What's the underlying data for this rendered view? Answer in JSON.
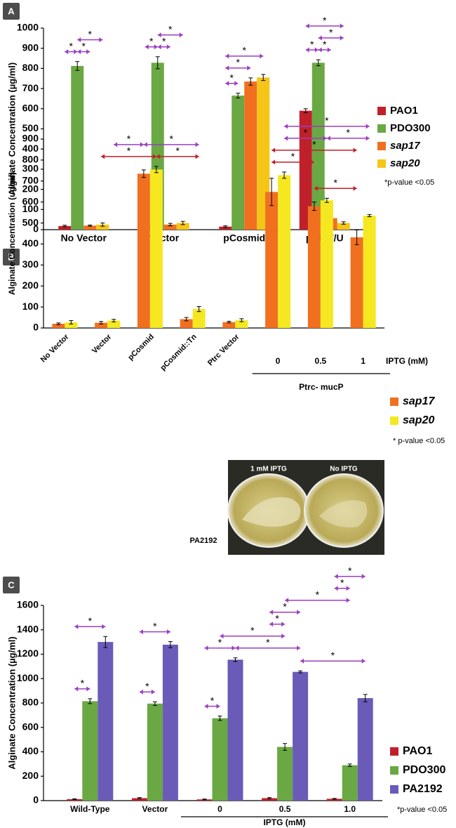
{
  "chart_data": [
    {
      "type": "bar",
      "panel": "A",
      "y_label": "Alginate Concentration (µg/ml)",
      "categories": [
        "No Vector",
        "Vector",
        "pCosmid",
        "pAlgT/U"
      ],
      "series": [
        {
          "name": "PAO1",
          "color": "#c0202a",
          "values": [
            18,
            25,
            15,
            590
          ],
          "errors": [
            4,
            6,
            4,
            10
          ]
        },
        {
          "name": "PDO300",
          "color": "#6aa844",
          "values": [
            812,
            828,
            665,
            828
          ],
          "errors": [
            22,
            30,
            12,
            15
          ]
        },
        {
          "name": "sap17",
          "color": "#f07020",
          "values": [
            20,
            25,
            735,
            57
          ],
          "errors": [
            3,
            6,
            18,
            15
          ]
        },
        {
          "name": "sap20",
          "color": "#f5c518",
          "values": [
            25,
            33,
            755,
            33
          ],
          "errors": [
            8,
            8,
            15,
            6
          ]
        }
      ],
      "legend_italic": [
        false,
        false,
        true,
        true
      ],
      "ylim": [
        0,
        1000
      ],
      "yticks": [
        0,
        100,
        200,
        300,
        400,
        500,
        600,
        700,
        800,
        900,
        1000
      ],
      "note": "*p-value <0.05",
      "significance": [
        {
          "label": "*",
          "from": [
            0,
            0
          ],
          "to": [
            0,
            1
          ],
          "color": "#9b3fc0"
        },
        {
          "label": "*",
          "from": [
            0,
            1
          ],
          "to": [
            0,
            2
          ],
          "color": "#9b3fc0"
        },
        {
          "label": "*",
          "from": [
            0,
            1
          ],
          "to": [
            0,
            3
          ],
          "color": "#9b3fc0"
        },
        {
          "label": "*",
          "from": [
            1,
            0
          ],
          "to": [
            1,
            1
          ],
          "color": "#9b3fc0"
        },
        {
          "label": "*",
          "from": [
            1,
            1
          ],
          "to": [
            1,
            2
          ],
          "color": "#9b3fc0"
        },
        {
          "label": "*",
          "from": [
            1,
            1
          ],
          "to": [
            1,
            3
          ],
          "color": "#9b3fc0"
        },
        {
          "label": "*",
          "from": [
            2,
            0
          ],
          "to": [
            2,
            1
          ],
          "color": "#9b3fc0"
        },
        {
          "label": "*",
          "from": [
            2,
            0
          ],
          "to": [
            2,
            2
          ],
          "color": "#9b3fc0"
        },
        {
          "label": "*",
          "from": [
            2,
            0
          ],
          "to": [
            2,
            3
          ],
          "color": "#9b3fc0"
        },
        {
          "label": "*",
          "from": [
            3,
            1
          ],
          "to": [
            3,
            2
          ],
          "color": "#9b3fc0"
        },
        {
          "label": "*",
          "from": [
            3,
            1
          ],
          "to": [
            3,
            3
          ],
          "color": "#9b3fc0"
        },
        {
          "label": "*",
          "from": [
            3,
            0
          ],
          "to": [
            3,
            1
          ],
          "color": "#9b3fc0"
        },
        {
          "label": "*",
          "from": [
            3,
            0
          ],
          "to": [
            3,
            3
          ],
          "color": "#9b3fc0"
        }
      ]
    },
    {
      "type": "bar",
      "panel": "B",
      "y_label": "Alginate Concentration (ug/ml)",
      "categories": [
        "No Vector",
        "Vector",
        "pCosmid",
        "pCosmid::Tn",
        "Ptrc Vector",
        "0",
        "0.5",
        "1"
      ],
      "series": [
        {
          "name": "sap17",
          "color": "#f07020",
          "values": [
            20,
            25,
            735,
            42,
            28,
            648,
            580,
            432
          ],
          "errors": [
            4,
            6,
            18,
            8,
            4,
            65,
            20,
            35
          ]
        },
        {
          "name": "sap20",
          "color": "#f5e820",
          "values": [
            27,
            35,
            755,
            90,
            37,
            728,
            608,
            535
          ],
          "errors": [
            8,
            6,
            15,
            12,
            7,
            15,
            10,
            5
          ]
        }
      ],
      "legend_italic": [
        true,
        true
      ],
      "ylim": [
        0,
        900
      ],
      "yticks": [
        0,
        100,
        200,
        300,
        400,
        500,
        600,
        700,
        800,
        900
      ],
      "note": "* p-value <0.05",
      "group_label": "Ptrc- mucP",
      "group_span": [
        5,
        7
      ],
      "x_note": "IPTG (mM)",
      "significance": [
        {
          "label": "*",
          "from": [
            1,
            0
          ],
          "to": [
            2,
            1
          ],
          "color": "#c0202a"
        },
        {
          "label": "*",
          "from": [
            2,
            1
          ],
          "to": [
            3,
            1
          ],
          "color": "#c0202a"
        },
        {
          "label": "*",
          "from": [
            1,
            1
          ],
          "to": [
            2,
            0
          ],
          "color": "#9b3fc0"
        },
        {
          "label": "*",
          "from": [
            2,
            0
          ],
          "to": [
            3,
            1
          ],
          "color": "#9b3fc0"
        },
        {
          "label": "*",
          "from": [
            5,
            0
          ],
          "to": [
            6,
            0
          ],
          "color": "#c0202a"
        },
        {
          "label": "*",
          "from": [
            6,
            0
          ],
          "to": [
            7,
            0
          ],
          "color": "#c0202a"
        },
        {
          "label": "*",
          "from": [
            5,
            0
          ],
          "to": [
            7,
            0
          ],
          "color": "#c0202a"
        },
        {
          "label": "*",
          "from": [
            5,
            1
          ],
          "to": [
            6,
            1
          ],
          "color": "#9b3fc0"
        },
        {
          "label": "*",
          "from": [
            6,
            1
          ],
          "to": [
            7,
            1
          ],
          "color": "#9b3fc0"
        },
        {
          "label": "*",
          "from": [
            5,
            1
          ],
          "to": [
            7,
            1
          ],
          "color": "#9b3fc0"
        }
      ]
    },
    {
      "type": "bar",
      "panel": "C",
      "y_label": "Alginate Concentration (µg/ml)",
      "categories": [
        "Wild-Type",
        "Vector",
        "0",
        "0.5",
        "1.0"
      ],
      "series": [
        {
          "name": "PAO1",
          "color": "#c0202a",
          "values": [
            12,
            20,
            10,
            20,
            15
          ],
          "errors": [
            3,
            5,
            3,
            5,
            3
          ]
        },
        {
          "name": "PDO300",
          "color": "#6aa844",
          "values": [
            815,
            795,
            675,
            440,
            290
          ],
          "errors": [
            20,
            15,
            18,
            28,
            10
          ]
        },
        {
          "name": "PA2192",
          "color": "#6a5bb8",
          "values": [
            1300,
            1278,
            1155,
            1055,
            840
          ],
          "errors": [
            45,
            25,
            15,
            8,
            30
          ]
        }
      ],
      "legend_italic": [
        false,
        false,
        false
      ],
      "ylim": [
        0,
        1600
      ],
      "yticks": [
        0,
        200,
        400,
        600,
        800,
        1000,
        1200,
        1400,
        1600
      ],
      "note": "*p-value <0.05",
      "group_label": "IPTG (mM)",
      "group_span": [
        2,
        4
      ],
      "inset_labels": [
        "1 mM IPTG",
        "No IPTG"
      ],
      "inset_caption": "PA2192",
      "significance": [
        {
          "label": "*",
          "from": [
            0,
            0
          ],
          "to": [
            0,
            1
          ],
          "color": "#9b3fc0"
        },
        {
          "label": "*",
          "from": [
            0,
            0
          ],
          "to": [
            0,
            2
          ],
          "color": "#9b3fc0"
        },
        {
          "label": "*",
          "from": [
            1,
            0
          ],
          "to": [
            1,
            1
          ],
          "color": "#9b3fc0"
        },
        {
          "label": "*",
          "from": [
            1,
            0
          ],
          "to": [
            1,
            2
          ],
          "color": "#9b3fc0"
        },
        {
          "label": "*",
          "from": [
            2,
            0
          ],
          "to": [
            2,
            1
          ],
          "color": "#9b3fc0"
        },
        {
          "label": "*",
          "from": [
            2,
            0
          ],
          "to": [
            2,
            2
          ],
          "color": "#9b3fc0"
        },
        {
          "label": "*",
          "from": [
            2,
            2
          ],
          "to": [
            3,
            2
          ],
          "color": "#9b3fc0"
        },
        {
          "label": "*",
          "from": [
            2,
            1
          ],
          "to": [
            3,
            1
          ],
          "color": "#9b3fc0"
        },
        {
          "label": "*",
          "from": [
            3,
            0
          ],
          "to": [
            3,
            1
          ],
          "color": "#9b3fc0"
        },
        {
          "label": "*",
          "from": [
            3,
            0
          ],
          "to": [
            3,
            2
          ],
          "color": "#9b3fc0"
        },
        {
          "label": "*",
          "from": [
            3,
            2
          ],
          "to": [
            4,
            2
          ],
          "color": "#9b3fc0"
        },
        {
          "label": "*",
          "from": [
            3,
            1
          ],
          "to": [
            4,
            1
          ],
          "color": "#9b3fc0"
        },
        {
          "label": "*",
          "from": [
            4,
            0
          ],
          "to": [
            4,
            1
          ],
          "color": "#9b3fc0"
        },
        {
          "label": "*",
          "from": [
            4,
            0
          ],
          "to": [
            4,
            2
          ],
          "color": "#9b3fc0"
        }
      ]
    }
  ]
}
